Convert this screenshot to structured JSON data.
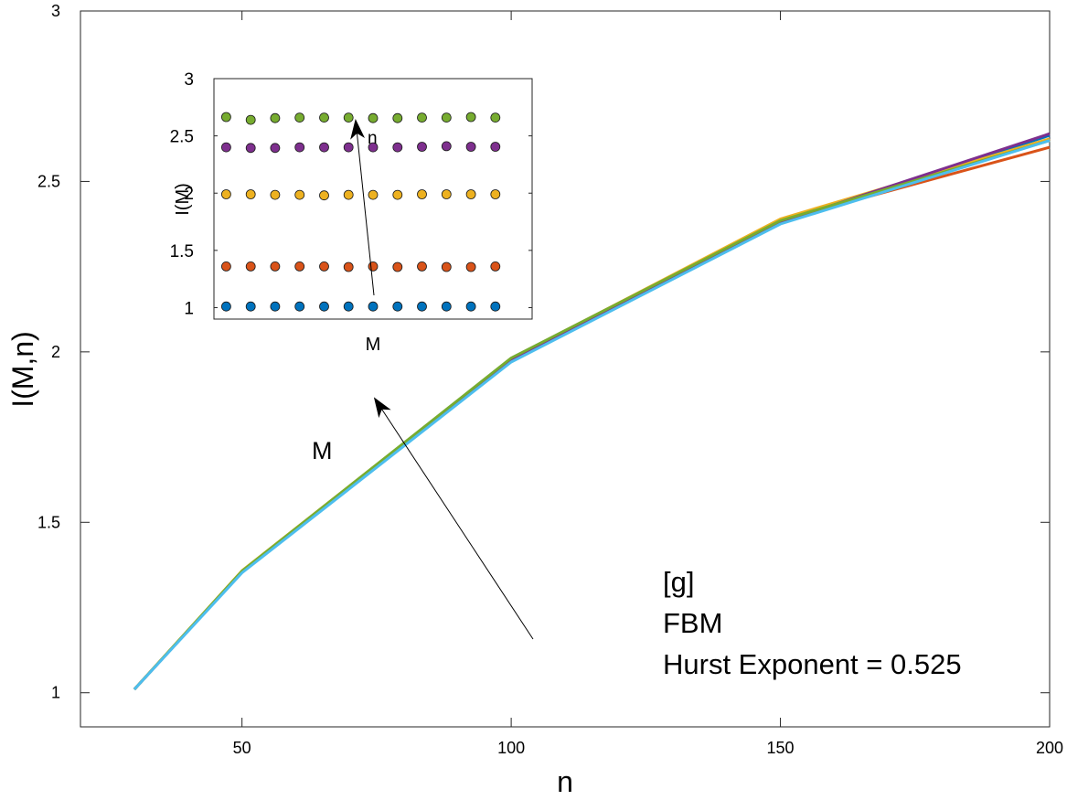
{
  "chart_data": [
    {
      "type": "line",
      "xlabel": "n",
      "ylabel": "I(M,n)",
      "xlim": [
        20,
        200
      ],
      "ylim": [
        0.9,
        3
      ],
      "xticks": [
        50,
        100,
        150,
        200
      ],
      "yticks": [
        1,
        1.5,
        2,
        2.5,
        3
      ],
      "x": [
        30,
        50,
        100,
        150,
        200
      ],
      "series": [
        {
          "values": [
            1.01,
            1.355,
            1.975,
            2.38,
            2.635
          ],
          "color": "#0072BD"
        },
        {
          "values": [
            1.01,
            1.355,
            1.978,
            2.385,
            2.6
          ],
          "color": "#D95319"
        },
        {
          "values": [
            1.01,
            1.358,
            1.98,
            2.39,
            2.625
          ],
          "color": "#EDB120"
        },
        {
          "values": [
            1.01,
            1.355,
            1.975,
            2.38,
            2.64
          ],
          "color": "#7E2F8E"
        },
        {
          "values": [
            1.01,
            1.357,
            1.982,
            2.385,
            2.62
          ],
          "color": "#77AC30"
        },
        {
          "values": [
            1.01,
            1.352,
            1.97,
            2.375,
            2.62
          ],
          "color": "#4DBEEE"
        }
      ],
      "annotations": {
        "arrow_label": "M",
        "text_lines": [
          "[g]",
          "FBM",
          "Hurst Exponent = 0.525"
        ]
      },
      "grid": false
    },
    {
      "type": "scatter",
      "xlabel": "M",
      "ylabel": "I(M)",
      "xlim": [
        0.5,
        13.5
      ],
      "ylim": [
        0.9,
        3
      ],
      "yticks": [
        1,
        1.5,
        2,
        2.5,
        3
      ],
      "xticks": [],
      "series": [
        {
          "color": "#0072BD",
          "values": [
            1.01,
            1.01,
            1.01,
            1.01,
            1.01,
            1.01,
            1.01,
            1.01,
            1.01,
            1.01,
            1.01,
            1.01
          ]
        },
        {
          "color": "#D95319",
          "values": [
            1.36,
            1.36,
            1.36,
            1.36,
            1.36,
            1.355,
            1.36,
            1.355,
            1.36,
            1.355,
            1.355,
            1.36
          ]
        },
        {
          "color": "#EDB120",
          "values": [
            1.99,
            1.99,
            1.985,
            1.985,
            1.98,
            1.985,
            1.985,
            1.985,
            1.99,
            1.99,
            1.99,
            1.99
          ]
        },
        {
          "color": "#7E2F8E",
          "values": [
            2.4,
            2.395,
            2.395,
            2.4,
            2.4,
            2.4,
            2.4,
            2.4,
            2.405,
            2.41,
            2.405,
            2.405
          ]
        },
        {
          "color": "#77AC30",
          "values": [
            2.665,
            2.64,
            2.655,
            2.66,
            2.66,
            2.66,
            2.655,
            2.655,
            2.66,
            2.66,
            2.665,
            2.66
          ]
        }
      ],
      "annotations": {
        "arrow_label": "n"
      }
    }
  ]
}
